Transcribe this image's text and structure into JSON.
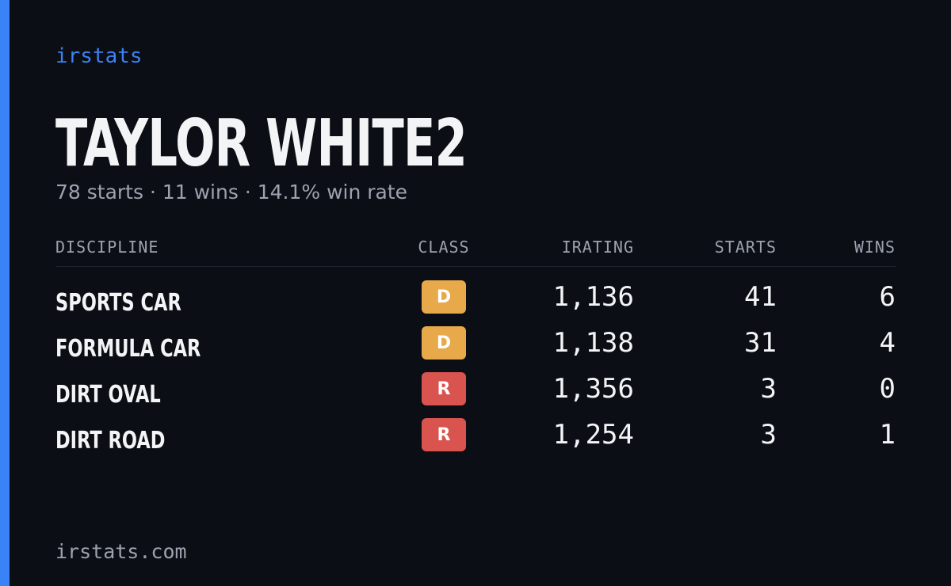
{
  "brand": "irstats",
  "title": "TAYLOR WHITE2",
  "subtitle": "78 starts · 11 wins · 14.1% win rate",
  "table": {
    "headers": [
      "DISCIPLINE",
      "CLASS",
      "IRATING",
      "STARTS",
      "WINS"
    ],
    "rows": [
      {
        "discipline": "SPORTS CAR",
        "class": "D",
        "color": "#e8a94a",
        "irating": "1,136",
        "starts": "41",
        "wins": "6"
      },
      {
        "discipline": "FORMULA CAR",
        "class": "D",
        "color": "#e8a94a",
        "irating": "1,138",
        "starts": "31",
        "wins": "4"
      },
      {
        "discipline": "DIRT OVAL",
        "class": "R",
        "color": "#d9534f",
        "irating": "1,356",
        "starts": "3",
        "wins": "0"
      },
      {
        "discipline": "DIRT ROAD",
        "class": "R",
        "color": "#d9534f",
        "irating": "1,254",
        "starts": "3",
        "wins": "1"
      }
    ]
  },
  "footer": "irstats.com"
}
